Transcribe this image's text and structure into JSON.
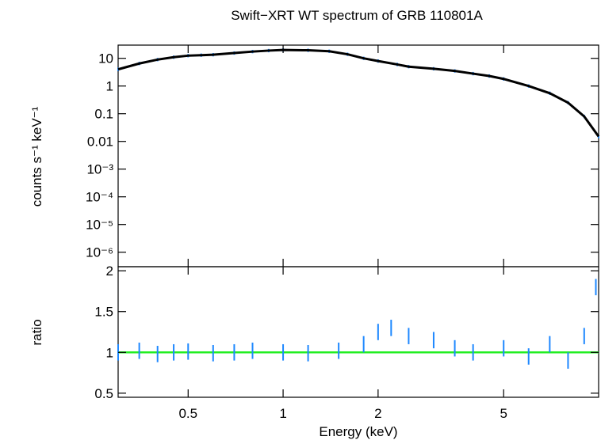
{
  "chart_data": {
    "type": "scatter",
    "title": "Swift−XRT WT spectrum of GRB 110801A",
    "xlabel": "Energy (keV)",
    "x_scale": "log",
    "xlim": [
      0.3,
      10
    ],
    "x_ticks": [
      {
        "value": 0.5,
        "label": "0.5"
      },
      {
        "value": 1,
        "label": "1"
      },
      {
        "value": 2,
        "label": "2"
      },
      {
        "value": 5,
        "label": "5"
      }
    ],
    "colors": {
      "data": "#1e88ff",
      "model": "#000000",
      "unity_line": "#22ee22"
    },
    "panels": [
      {
        "name": "spectrum",
        "ylabel": "counts s⁻¹ keV⁻¹",
        "y_scale": "log",
        "ylim": [
          3e-07,
          30
        ],
        "y_ticks": [
          {
            "value": 10,
            "label": "10"
          },
          {
            "value": 1,
            "label": "1"
          },
          {
            "value": 0.1,
            "label": "0.1"
          },
          {
            "value": 0.01,
            "label": "0.01"
          },
          {
            "value": 0.001,
            "label": "10⁻³"
          },
          {
            "value": 0.0001,
            "label": "10⁻⁴"
          },
          {
            "value": 1e-05,
            "label": "10⁻⁵"
          },
          {
            "value": 1e-06,
            "label": "10⁻⁶"
          }
        ],
        "data_points": {
          "x": [
            0.3,
            0.35,
            0.4,
            0.45,
            0.5,
            0.55,
            0.6,
            0.7,
            0.8,
            0.9,
            1.0,
            1.2,
            1.4,
            1.6,
            1.8,
            2.0,
            2.3,
            2.5,
            3.0,
            3.5,
            4.0,
            4.5,
            5.0,
            6.0,
            7.0,
            8.0,
            9.0,
            10.0
          ],
          "y": [
            4.0,
            6.5,
            9.0,
            11.0,
            12.5,
            13.0,
            13.5,
            15.5,
            17.5,
            19.0,
            20.0,
            19.5,
            18.0,
            14.0,
            10.0,
            8.0,
            6.0,
            5.0,
            4.2,
            3.5,
            2.8,
            2.3,
            1.8,
            1.0,
            0.55,
            0.25,
            0.08,
            0.015
          ]
        },
        "model_curve": {
          "x": [
            0.3,
            0.35,
            0.4,
            0.45,
            0.5,
            0.55,
            0.6,
            0.7,
            0.8,
            0.9,
            1.0,
            1.2,
            1.4,
            1.6,
            1.8,
            2.0,
            2.3,
            2.5,
            3.0,
            3.5,
            4.0,
            4.5,
            5.0,
            6.0,
            7.0,
            8.0,
            9.0,
            10.0
          ],
          "y": [
            4.0,
            6.5,
            9.0,
            11.0,
            12.5,
            13.0,
            13.5,
            15.5,
            17.5,
            19.0,
            20.0,
            19.5,
            18.0,
            14.0,
            10.0,
            8.0,
            6.0,
            5.0,
            4.2,
            3.5,
            2.8,
            2.3,
            1.8,
            1.0,
            0.55,
            0.25,
            0.08,
            0.015
          ]
        }
      },
      {
        "name": "ratio",
        "ylabel": "ratio",
        "y_scale": "linear",
        "ylim": [
          0.45,
          2.05
        ],
        "y_ticks": [
          {
            "value": 0.5,
            "label": "0.5"
          },
          {
            "value": 1,
            "label": "1"
          },
          {
            "value": 1.5,
            "label": "1.5"
          },
          {
            "value": 2,
            "label": "2"
          }
        ],
        "reference_line": 1,
        "data_points": {
          "x": [
            0.3,
            0.35,
            0.4,
            0.45,
            0.5,
            0.6,
            0.7,
            0.8,
            1.0,
            1.2,
            1.5,
            1.8,
            2.0,
            2.2,
            2.5,
            3.0,
            3.5,
            4.0,
            5.0,
            6.0,
            7.0,
            8.0,
            9.0,
            9.8
          ],
          "y": [
            1.0,
            1.02,
            0.98,
            1.0,
            1.01,
            0.99,
            1.0,
            1.02,
            1.0,
            0.99,
            1.02,
            1.1,
            1.25,
            1.3,
            1.2,
            1.15,
            1.05,
            1.0,
            1.05,
            0.95,
            1.1,
            0.9,
            1.2,
            1.8
          ]
        }
      }
    ]
  }
}
